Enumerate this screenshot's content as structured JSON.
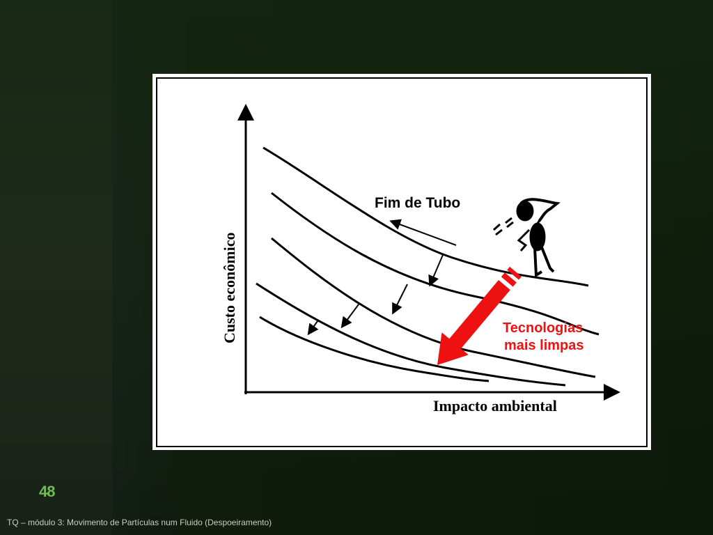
{
  "slide": {
    "page_number": "48",
    "footer": "TQ – módulo 3: Movimento de Partículas num Fluido (Despoeiramento)"
  },
  "diagram": {
    "y_axis_label": "Custo econômico",
    "x_axis_label": "Impacto ambiental",
    "label_end_of_pipe": "Fim de Tubo",
    "label_clean_tech_line1": "Tecnologias",
    "label_clean_tech_line2": "mais limpas",
    "accent_color": "#ee1111"
  }
}
